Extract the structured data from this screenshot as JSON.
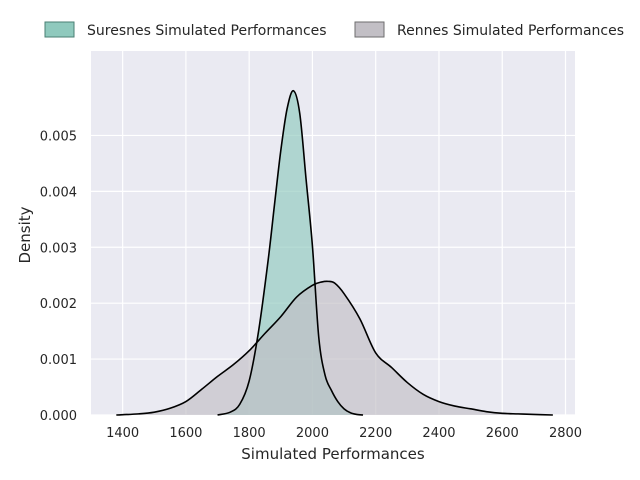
{
  "chart_data": {
    "type": "area",
    "title": "",
    "xlabel": "Simulated Performances",
    "ylabel": "Density",
    "xlim": [
      1300,
      2830
    ],
    "ylim": [
      0,
      0.00651
    ],
    "grid": true,
    "legend_position": "top",
    "x_ticks": [
      "1400",
      "1600",
      "1800",
      "2000",
      "2200",
      "2400",
      "2600",
      "2800"
    ],
    "y_ticks": [
      "0.000",
      "0.001",
      "0.002",
      "0.003",
      "0.004",
      "0.005"
    ],
    "colors": {
      "background": "#eaeaf2",
      "grid": "#ffffff",
      "suresnes_fill": "#8fc9bd",
      "rennes_fill": "#c2bfc5",
      "outline": "#000000"
    },
    "series": [
      {
        "name": "Suresnes Simulated Performances",
        "x": [
          1700,
          1740,
          1770,
          1800,
          1830,
          1860,
          1880,
          1900,
          1920,
          1940,
          1960,
          1980,
          2000,
          2020,
          2040,
          2060,
          2080,
          2100,
          2120,
          2140,
          2160
        ],
        "y": [
          0.0,
          5e-05,
          0.00019,
          0.00061,
          0.00151,
          0.00277,
          0.00376,
          0.00473,
          0.00548,
          0.0058,
          0.00539,
          0.00421,
          0.00302,
          0.00139,
          0.00071,
          0.00044,
          0.00024,
          0.00011,
          4e-05,
          1e-05,
          0.0
        ]
      },
      {
        "name": "Rennes Simulated Performances",
        "x": [
          1380,
          1450,
          1500,
          1550,
          1600,
          1650,
          1700,
          1750,
          1800,
          1850,
          1900,
          1950,
          2000,
          2030,
          2050,
          2070,
          2100,
          2150,
          2200,
          2250,
          2300,
          2350,
          2400,
          2450,
          2500,
          2550,
          2600,
          2650,
          2700,
          2760
        ],
        "y": [
          0.0,
          2e-05,
          5e-05,
          0.00012,
          0.00024,
          0.00046,
          0.00069,
          0.0009,
          0.00115,
          0.00146,
          0.00176,
          0.00211,
          0.00232,
          0.00238,
          0.00239,
          0.00236,
          0.00217,
          0.00172,
          0.00111,
          0.00085,
          0.00058,
          0.00037,
          0.00024,
          0.00016,
          0.00011,
          6e-05,
          3e-05,
          2e-05,
          1e-05,
          0.0
        ]
      }
    ]
  }
}
